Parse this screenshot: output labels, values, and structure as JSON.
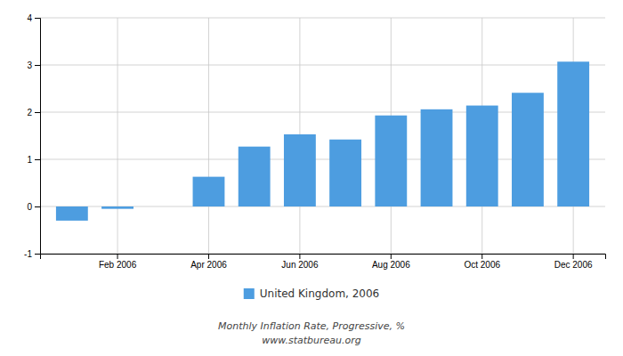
{
  "chart_data": {
    "type": "bar",
    "categories": [
      null,
      "Feb 2006",
      null,
      "Apr 2006",
      null,
      "Jun 2006",
      null,
      "Aug 2006",
      null,
      "Oct 2006",
      null,
      "Dec 2006"
    ],
    "series": [
      {
        "name": "United Kingdom, 2006",
        "color": "#4d9de0",
        "values": [
          -0.3,
          -0.05,
          0.0,
          0.63,
          1.27,
          1.53,
          1.42,
          1.93,
          2.06,
          2.14,
          2.41,
          3.07
        ]
      }
    ],
    "ylim": [
      -1.0,
      4.0
    ],
    "yticks": [
      -1,
      0,
      1,
      2,
      3,
      4
    ],
    "grid": true,
    "legend": "bottom",
    "annotations": [
      "Monthly Inflation Rate, Progressive, %",
      "www.statbureau.org"
    ]
  }
}
